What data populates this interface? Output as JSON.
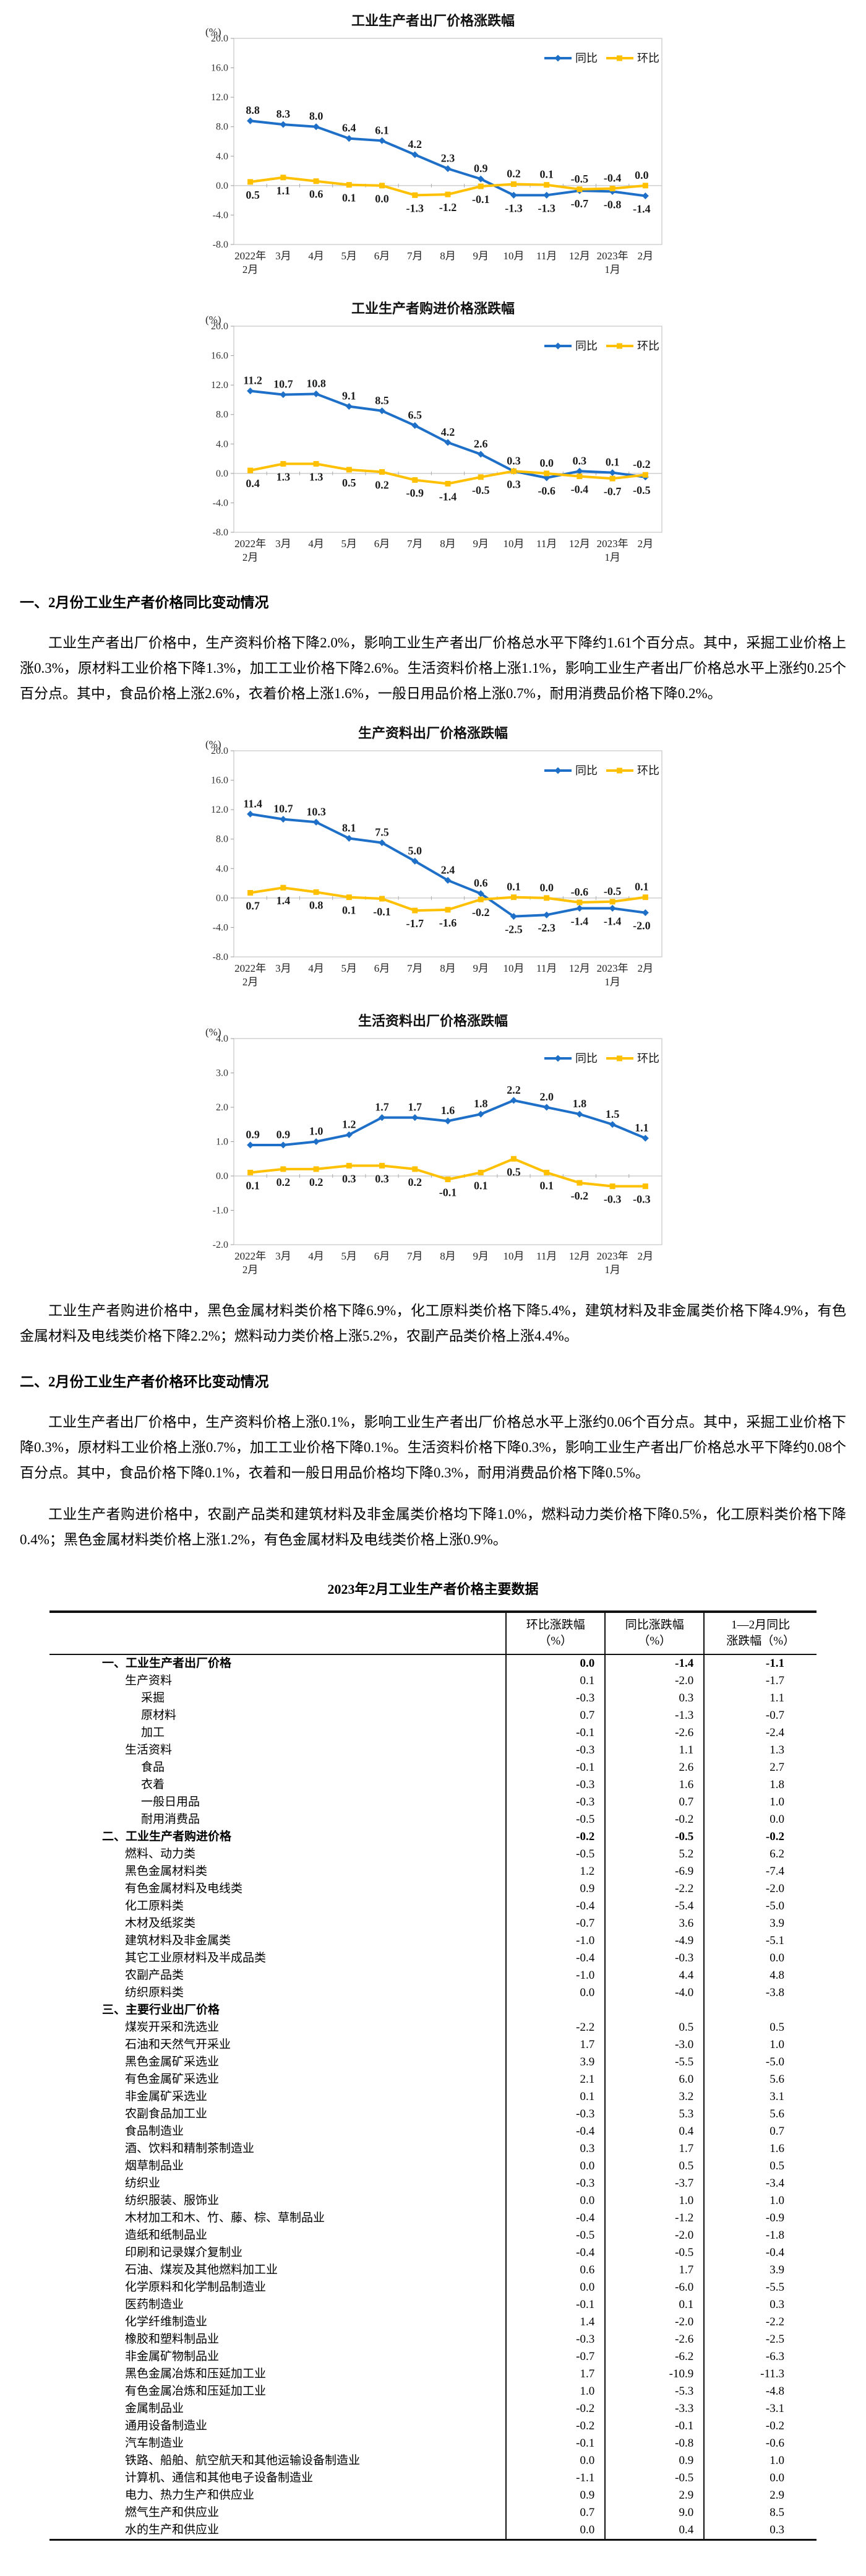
{
  "chart_data": [
    {
      "type": "line",
      "title": "工业生产者出厂价格涨跌幅",
      "unit": "(%)",
      "ylim": [
        -8,
        20
      ],
      "ystep": 4,
      "grid": false,
      "legend_position": "top-right",
      "categories": [
        "2022年\n2月",
        "3月",
        "4月",
        "5月",
        "6月",
        "7月",
        "8月",
        "9月",
        "10月",
        "11月",
        "12月",
        "2023年\n1月",
        "2月"
      ],
      "series": [
        {
          "name": "同比",
          "color": "#1e6fc8",
          "marker": "diamond",
          "values": [
            8.8,
            8.3,
            8.0,
            6.4,
            6.1,
            4.2,
            2.3,
            0.9,
            -1.3,
            -1.3,
            -0.7,
            -0.8,
            -1.4
          ]
        },
        {
          "name": "环比",
          "color": "#ffc000",
          "marker": "square",
          "values": [
            0.5,
            1.1,
            0.6,
            0.1,
            0.0,
            -1.3,
            -1.2,
            -0.1,
            0.2,
            0.1,
            -0.5,
            -0.4,
            0.0
          ]
        }
      ]
    },
    {
      "type": "line",
      "title": "工业生产者购进价格涨跌幅",
      "unit": "(%)",
      "ylim": [
        -8,
        20
      ],
      "ystep": 4,
      "grid": false,
      "legend_position": "top-right",
      "categories": [
        "2022年\n2月",
        "3月",
        "4月",
        "5月",
        "6月",
        "7月",
        "8月",
        "9月",
        "10月",
        "11月",
        "12月",
        "2023年\n1月",
        "2月"
      ],
      "series": [
        {
          "name": "同比",
          "color": "#1e6fc8",
          "marker": "diamond",
          "values": [
            11.2,
            10.7,
            10.8,
            9.1,
            8.5,
            6.5,
            4.2,
            2.6,
            0.3,
            -0.6,
            0.3,
            0.1,
            -0.5
          ]
        },
        {
          "name": "环比",
          "color": "#ffc000",
          "marker": "square",
          "values": [
            0.4,
            1.3,
            1.3,
            0.5,
            0.2,
            -0.9,
            -1.4,
            -0.5,
            0.3,
            0.0,
            -0.4,
            -0.7,
            -0.2
          ]
        }
      ]
    },
    {
      "type": "line",
      "title": "生产资料出厂价格涨跌幅",
      "unit": "(%)",
      "ylim": [
        -8,
        20
      ],
      "ystep": 4,
      "grid": false,
      "legend_position": "top-right",
      "categories": [
        "2022年\n2月",
        "3月",
        "4月",
        "5月",
        "6月",
        "7月",
        "8月",
        "9月",
        "10月",
        "11月",
        "12月",
        "2023年\n1月",
        "2月"
      ],
      "series": [
        {
          "name": "同比",
          "color": "#1e6fc8",
          "marker": "diamond",
          "values": [
            11.4,
            10.7,
            10.3,
            8.1,
            7.5,
            5.0,
            2.4,
            0.6,
            -2.5,
            -2.3,
            -1.4,
            -1.4,
            -2.0
          ]
        },
        {
          "name": "环比",
          "color": "#ffc000",
          "marker": "square",
          "values": [
            0.7,
            1.4,
            0.8,
            0.1,
            -0.1,
            -1.7,
            -1.6,
            -0.2,
            0.1,
            0.0,
            -0.6,
            -0.5,
            0.1
          ]
        }
      ]
    },
    {
      "type": "line",
      "title": "生活资料出厂价格涨跌幅",
      "unit": "(%)",
      "ylim": [
        -2,
        4
      ],
      "ystep": 1,
      "grid": false,
      "legend_position": "top-right",
      "categories": [
        "2022年\n2月",
        "3月",
        "4月",
        "5月",
        "6月",
        "7月",
        "8月",
        "9月",
        "10月",
        "11月",
        "12月",
        "2023年\n1月",
        "2月"
      ],
      "series": [
        {
          "name": "同比",
          "color": "#1e6fc8",
          "marker": "diamond",
          "values": [
            0.9,
            0.9,
            1.0,
            1.2,
            1.7,
            1.7,
            1.6,
            1.8,
            2.2,
            2.0,
            1.8,
            1.5,
            1.1
          ]
        },
        {
          "name": "环比",
          "color": "#ffc000",
          "marker": "square",
          "values": [
            0.1,
            0.2,
            0.2,
            0.3,
            0.3,
            0.2,
            -0.1,
            0.1,
            0.5,
            0.1,
            -0.2,
            -0.3,
            -0.3
          ]
        }
      ]
    }
  ],
  "sections": [
    {
      "heading": "一、2月份工业生产者价格同比变动情况",
      "paragraphs": [
        "工业生产者出厂价格中，生产资料价格下降2.0%，影响工业生产者出厂价格总水平下降约1.61个百分点。其中，采掘工业价格上涨0.3%，原材料工业价格下降1.3%，加工工业价格下降2.6%。生活资料价格上涨1.1%，影响工业生产者出厂价格总水平上涨约0.25个百分点。其中，食品价格上涨2.6%，衣着价格上涨1.6%，一般日用品价格上涨0.7%，耐用消费品价格下降0.2%。",
        "工业生产者购进价格中，黑色金属材料类价格下降6.9%，化工原料类价格下降5.4%，建筑材料及非金属类价格下降4.9%，有色金属材料及电线类价格下降2.2%；燃料动力类价格上涨5.2%，农副产品类价格上涨4.4%。"
      ]
    },
    {
      "heading": "二、2月份工业生产者价格环比变动情况",
      "paragraphs": [
        "工业生产者出厂价格中，生产资料价格上涨0.1%，影响工业生产者出厂价格总水平上涨约0.06个百分点。其中，采掘工业价格下降0.3%，原材料工业价格上涨0.7%，加工工业价格下降0.1%。生活资料价格下降0.3%，影响工业生产者出厂价格总水平下降约0.08个百分点。其中，食品价格下降0.1%，衣着和一般日用品价格均下降0.3%，耐用消费品价格下降0.5%。",
        "工业生产者购进价格中，农副产品类和建筑材料及非金属类价格均下降1.0%，燃料动力类价格下降0.5%，化工原料类价格下降0.4%；黑色金属材料类价格上涨1.2%，有色金属材料及电线类价格上涨0.9%。"
      ]
    }
  ],
  "table": {
    "title": "2023年2月工业生产者价格主要数据",
    "col_headers": [
      "环比涨跌幅\n（%）",
      "同比涨跌幅\n（%）",
      "1—2月同比\n涨跌幅（%）"
    ],
    "rows": [
      {
        "label": "一、工业生产者出厂价格",
        "indent": 0,
        "bold": true,
        "values": [
          "0.0",
          "-1.4",
          "-1.1"
        ]
      },
      {
        "label": "生产资料",
        "indent": 1,
        "bold": false,
        "values": [
          "0.1",
          "-2.0",
          "-1.7"
        ]
      },
      {
        "label": "采掘",
        "indent": 2,
        "bold": false,
        "values": [
          "-0.3",
          "0.3",
          "1.1"
        ]
      },
      {
        "label": "原材料",
        "indent": 2,
        "bold": false,
        "values": [
          "0.7",
          "-1.3",
          "-0.7"
        ]
      },
      {
        "label": "加工",
        "indent": 2,
        "bold": false,
        "values": [
          "-0.1",
          "-2.6",
          "-2.4"
        ]
      },
      {
        "label": "生活资料",
        "indent": 1,
        "bold": false,
        "values": [
          "-0.3",
          "1.1",
          "1.3"
        ]
      },
      {
        "label": "食品",
        "indent": 2,
        "bold": false,
        "values": [
          "-0.1",
          "2.6",
          "2.7"
        ]
      },
      {
        "label": "衣着",
        "indent": 2,
        "bold": false,
        "values": [
          "-0.3",
          "1.6",
          "1.8"
        ]
      },
      {
        "label": "一般日用品",
        "indent": 2,
        "bold": false,
        "values": [
          "-0.3",
          "0.7",
          "1.0"
        ]
      },
      {
        "label": "耐用消费品",
        "indent": 2,
        "bold": false,
        "values": [
          "-0.5",
          "-0.2",
          "0.0"
        ]
      },
      {
        "label": "二、工业生产者购进价格",
        "indent": 0,
        "bold": true,
        "values": [
          "-0.2",
          "-0.5",
          "-0.2"
        ]
      },
      {
        "label": "燃料、动力类",
        "indent": 1,
        "bold": false,
        "values": [
          "-0.5",
          "5.2",
          "6.2"
        ]
      },
      {
        "label": "黑色金属材料类",
        "indent": 1,
        "bold": false,
        "values": [
          "1.2",
          "-6.9",
          "-7.4"
        ]
      },
      {
        "label": "有色金属材料及电线类",
        "indent": 1,
        "bold": false,
        "values": [
          "0.9",
          "-2.2",
          "-2.0"
        ]
      },
      {
        "label": "化工原料类",
        "indent": 1,
        "bold": false,
        "values": [
          "-0.4",
          "-5.4",
          "-5.0"
        ]
      },
      {
        "label": "木材及纸浆类",
        "indent": 1,
        "bold": false,
        "values": [
          "-0.7",
          "3.6",
          "3.9"
        ]
      },
      {
        "label": "建筑材料及非金属类",
        "indent": 1,
        "bold": false,
        "values": [
          "-1.0",
          "-4.9",
          "-5.1"
        ]
      },
      {
        "label": "其它工业原材料及半成品类",
        "indent": 1,
        "bold": false,
        "values": [
          "-0.4",
          "-0.3",
          "0.0"
        ]
      },
      {
        "label": "农副产品类",
        "indent": 1,
        "bold": false,
        "values": [
          "-1.0",
          "4.4",
          "4.8"
        ]
      },
      {
        "label": "纺织原料类",
        "indent": 1,
        "bold": false,
        "values": [
          "0.0",
          "-4.0",
          "-3.8"
        ]
      },
      {
        "label": "三、主要行业出厂价格",
        "indent": 0,
        "bold": true,
        "values": [
          "",
          "",
          ""
        ]
      },
      {
        "label": "煤炭开采和洗选业",
        "indent": 1,
        "bold": false,
        "values": [
          "-2.2",
          "0.5",
          "0.5"
        ]
      },
      {
        "label": "石油和天然气开采业",
        "indent": 1,
        "bold": false,
        "values": [
          "1.7",
          "-3.0",
          "1.0"
        ]
      },
      {
        "label": "黑色金属矿采选业",
        "indent": 1,
        "bold": false,
        "values": [
          "3.9",
          "-5.5",
          "-5.0"
        ]
      },
      {
        "label": "有色金属矿采选业",
        "indent": 1,
        "bold": false,
        "values": [
          "2.1",
          "6.0",
          "5.6"
        ]
      },
      {
        "label": "非金属矿采选业",
        "indent": 1,
        "bold": false,
        "values": [
          "0.1",
          "3.2",
          "3.1"
        ]
      },
      {
        "label": "农副食品加工业",
        "indent": 1,
        "bold": false,
        "values": [
          "-0.3",
          "5.3",
          "5.6"
        ]
      },
      {
        "label": "食品制造业",
        "indent": 1,
        "bold": false,
        "values": [
          "-0.4",
          "0.4",
          "0.7"
        ]
      },
      {
        "label": "酒、饮料和精制茶制造业",
        "indent": 1,
        "bold": false,
        "values": [
          "0.3",
          "1.7",
          "1.6"
        ]
      },
      {
        "label": "烟草制品业",
        "indent": 1,
        "bold": false,
        "values": [
          "0.0",
          "0.5",
          "0.5"
        ]
      },
      {
        "label": "纺织业",
        "indent": 1,
        "bold": false,
        "values": [
          "-0.3",
          "-3.7",
          "-3.4"
        ]
      },
      {
        "label": "纺织服装、服饰业",
        "indent": 1,
        "bold": false,
        "values": [
          "0.0",
          "1.0",
          "1.0"
        ]
      },
      {
        "label": "木材加工和木、竹、藤、棕、草制品业",
        "indent": 1,
        "bold": false,
        "values": [
          "-0.4",
          "-1.2",
          "-0.9"
        ]
      },
      {
        "label": "造纸和纸制品业",
        "indent": 1,
        "bold": false,
        "values": [
          "-0.5",
          "-2.0",
          "-1.8"
        ]
      },
      {
        "label": "印刷和记录媒介复制业",
        "indent": 1,
        "bold": false,
        "values": [
          "-0.4",
          "-0.5",
          "-0.4"
        ]
      },
      {
        "label": "石油、煤炭及其他燃料加工业",
        "indent": 1,
        "bold": false,
        "values": [
          "0.6",
          "1.7",
          "3.9"
        ]
      },
      {
        "label": "化学原料和化学制品制造业",
        "indent": 1,
        "bold": false,
        "values": [
          "0.0",
          "-6.0",
          "-5.5"
        ]
      },
      {
        "label": "医药制造业",
        "indent": 1,
        "bold": false,
        "values": [
          "-0.1",
          "0.1",
          "0.3"
        ]
      },
      {
        "label": "化学纤维制造业",
        "indent": 1,
        "bold": false,
        "values": [
          "1.4",
          "-2.0",
          "-2.2"
        ]
      },
      {
        "label": "橡胶和塑料制品业",
        "indent": 1,
        "bold": false,
        "values": [
          "-0.3",
          "-2.6",
          "-2.5"
        ]
      },
      {
        "label": "非金属矿物制品业",
        "indent": 1,
        "bold": false,
        "values": [
          "-0.7",
          "-6.2",
          "-6.3"
        ]
      },
      {
        "label": "黑色金属冶炼和压延加工业",
        "indent": 1,
        "bold": false,
        "values": [
          "1.7",
          "-10.9",
          "-11.3"
        ]
      },
      {
        "label": "有色金属冶炼和压延加工业",
        "indent": 1,
        "bold": false,
        "values": [
          "1.0",
          "-5.3",
          "-4.8"
        ]
      },
      {
        "label": "金属制品业",
        "indent": 1,
        "bold": false,
        "values": [
          "-0.2",
          "-3.3",
          "-3.1"
        ]
      },
      {
        "label": "通用设备制造业",
        "indent": 1,
        "bold": false,
        "values": [
          "-0.2",
          "-0.1",
          "-0.2"
        ]
      },
      {
        "label": "汽车制造业",
        "indent": 1,
        "bold": false,
        "values": [
          "-0.1",
          "-0.8",
          "-0.6"
        ]
      },
      {
        "label": "铁路、船舶、航空航天和其他运输设备制造业",
        "indent": 1,
        "bold": false,
        "values": [
          "0.0",
          "0.9",
          "1.0"
        ]
      },
      {
        "label": "计算机、通信和其他电子设备制造业",
        "indent": 1,
        "bold": false,
        "values": [
          "-1.1",
          "-0.5",
          "0.0"
        ]
      },
      {
        "label": "电力、热力生产和供应业",
        "indent": 1,
        "bold": false,
        "values": [
          "0.9",
          "2.9",
          "2.9"
        ]
      },
      {
        "label": "燃气生产和供应业",
        "indent": 1,
        "bold": false,
        "values": [
          "0.7",
          "9.0",
          "8.5"
        ]
      },
      {
        "label": "水的生产和供应业",
        "indent": 1,
        "bold": false,
        "values": [
          "0.0",
          "0.4",
          "0.3"
        ]
      }
    ]
  }
}
